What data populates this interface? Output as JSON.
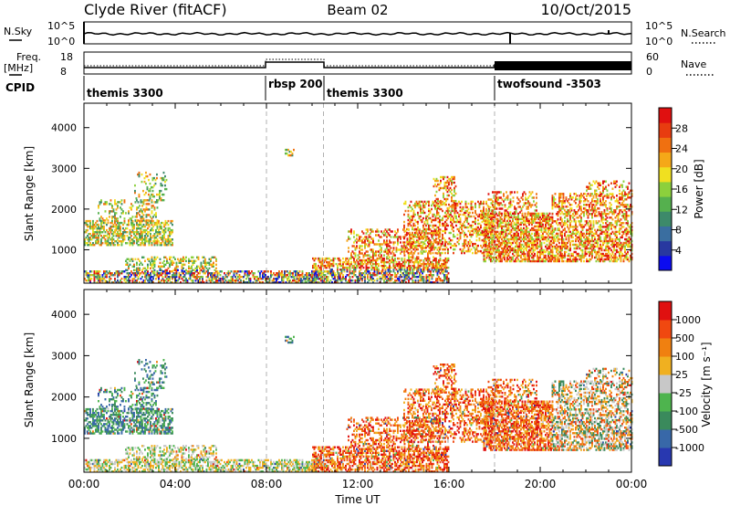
{
  "header": {
    "station": "Clyde River (fitACF)",
    "beam": "Beam 02",
    "date": "10/Oct/2015"
  },
  "top_panel": {
    "left_label": "N.Sky",
    "right_label": "N.Search",
    "left_ticks": [
      "10^5",
      "10^0"
    ],
    "right_ticks": [
      "10^5",
      "10^0"
    ]
  },
  "freq_panel": {
    "left_label_1": "Freq.",
    "left_label_2": "[MHz]",
    "left_ticks": [
      "18",
      "8"
    ],
    "right_label": "Nave",
    "right_ticks": [
      "60",
      "0"
    ]
  },
  "cpid": {
    "label": "CPID",
    "segments": [
      {
        "label": "themis 3300",
        "start_h": 0,
        "end_h": 8
      },
      {
        "label": "rbsp 200",
        "start_h": 8,
        "end_h": 10.5
      },
      {
        "label": "themis 3300",
        "start_h": 10.5,
        "end_h": 18
      },
      {
        "label": "twofsound -3503",
        "start_h": 18,
        "end_h": 24
      }
    ]
  },
  "chart_data": [
    {
      "type": "heatmap",
      "name": "power",
      "ylabel": "Slant Range [km]",
      "xlim": [
        0,
        24
      ],
      "ylim": [
        180,
        4600
      ],
      "yticks": [
        "1000",
        "2000",
        "3000",
        "4000"
      ],
      "colorbar": {
        "label": "Power [dB]",
        "range": [
          0,
          32
        ],
        "ticks": [
          "4",
          "8",
          "12",
          "16",
          "20",
          "24",
          "28"
        ],
        "colors": [
          "#0b0bf0",
          "#2838a0",
          "#3a6ea0",
          "#3d8a6a",
          "#55b04e",
          "#8cd03c",
          "#f0e020",
          "#f5a818",
          "#f07010",
          "#e83c10",
          "#e01010"
        ]
      }
    },
    {
      "type": "heatmap",
      "name": "velocity",
      "ylabel": "Slant Range [km]",
      "xlim": [
        0,
        24
      ],
      "ylim": [
        180,
        4600
      ],
      "yticks": [
        "1000",
        "2000",
        "3000",
        "4000"
      ],
      "colorbar": {
        "label": "Velocity [m s⁻¹]",
        "ticks": [
          "1000",
          "500",
          "100",
          "25",
          "-25",
          "-100",
          "-500",
          "-1000"
        ],
        "colors": [
          "#2838b0",
          "#3868a8",
          "#3a8a5c",
          "#4eb44e",
          "#c8c8c8",
          "#f0b020",
          "#f08010",
          "#f04810",
          "#e01010"
        ]
      }
    }
  ],
  "x_axis": {
    "ticks": [
      "00:00",
      "04:00",
      "08:00",
      "12:00",
      "16:00",
      "20:00",
      "00:00"
    ],
    "label": "Time UT"
  }
}
